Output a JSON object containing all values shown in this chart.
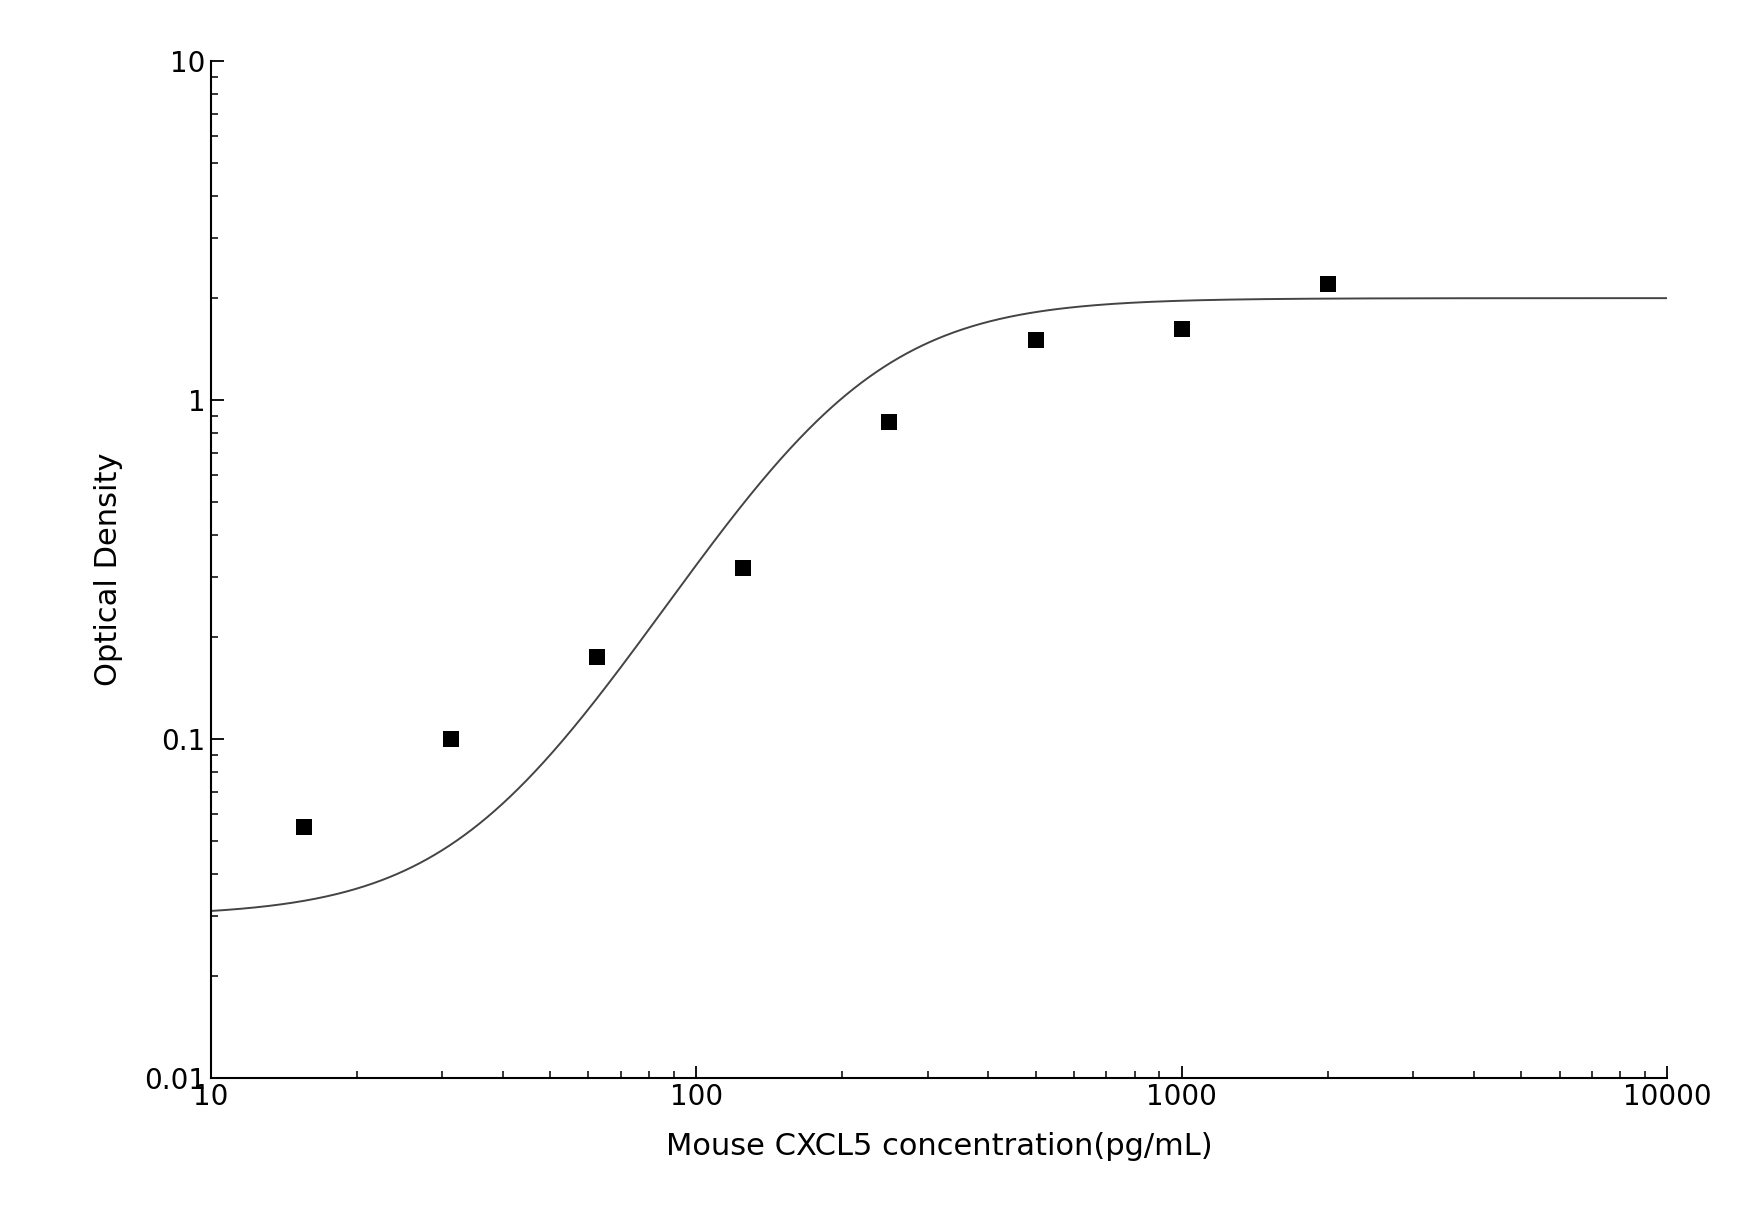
{
  "x_data": [
    15.6,
    31.2,
    62.5,
    125,
    250,
    500,
    1000,
    2000
  ],
  "y_data": [
    0.055,
    0.1,
    0.175,
    0.32,
    0.86,
    1.5,
    1.62,
    2.2
  ],
  "xlabel": "Mouse CXCL5 concentration(pg/mL)",
  "ylabel": "Optical Density",
  "x_min": 10,
  "x_max": 10000,
  "y_min": 0.01,
  "y_max": 10,
  "line_color": "#444444",
  "marker_color": "#000000",
  "marker_size": 11,
  "line_width": 1.4,
  "font_size_label": 22,
  "font_size_tick": 20,
  "background_color": "#ffffff"
}
